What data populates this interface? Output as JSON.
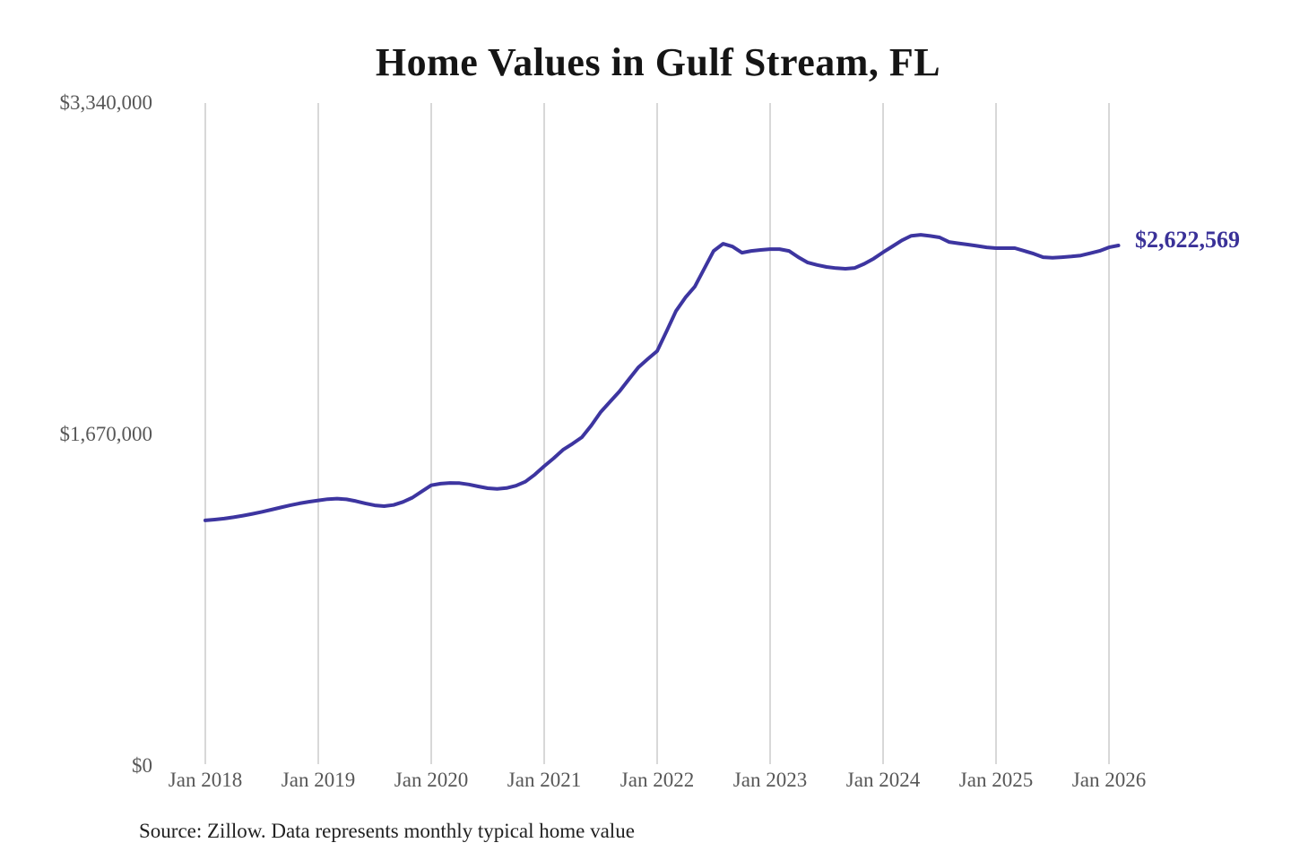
{
  "title": "Home Values in Gulf Stream, FL",
  "source_note": "Source: Zillow. Data represents monthly typical home value",
  "end_value_label": "$2,622,569",
  "colors": {
    "line": "#3d35a0",
    "grid": "#cccccc",
    "axis_text": "#575757",
    "title_text": "#151515",
    "end_label_text": "#3a3198",
    "background": "#ffffff"
  },
  "chart_data": {
    "type": "line",
    "title": "Home Values in Gulf Stream, FL",
    "xlabel": "",
    "ylabel": "",
    "ylim": [
      0,
      3340000
    ],
    "grid": "vertical-only",
    "legend": "none",
    "y_ticks": [
      {
        "label": "$0",
        "value": 0
      },
      {
        "label": "$1,670,000",
        "value": 1670000
      },
      {
        "label": "$3,340,000",
        "value": 3340000
      }
    ],
    "x_tick_labels": [
      "Jan 2018",
      "Jan 2019",
      "Jan 2020",
      "Jan 2021",
      "Jan 2022",
      "Jan 2023",
      "Jan 2024",
      "Jan 2025",
      "Jan 2026"
    ],
    "end_value": 2622569,
    "end_value_label": "$2,622,569",
    "series": [
      {
        "name": "Monthly typical home value",
        "x_start": "2018-01",
        "x_step_months": 1,
        "values": [
          1237000,
          1241000,
          1246000,
          1253000,
          1261000,
          1270000,
          1280000,
          1291000,
          1302000,
          1313000,
          1323000,
          1331000,
          1338000,
          1344000,
          1347000,
          1343000,
          1334000,
          1323000,
          1313000,
          1309000,
          1315000,
          1330000,
          1352000,
          1383000,
          1414000,
          1422000,
          1426000,
          1425000,
          1418000,
          1408000,
          1399000,
          1396000,
          1400000,
          1412000,
          1432000,
          1468000,
          1510000,
          1550000,
          1593000,
          1623000,
          1656000,
          1715000,
          1783000,
          1835000,
          1887000,
          1948000,
          2008000,
          2050000,
          2090000,
          2190000,
          2292000,
          2360000,
          2415000,
          2505000,
          2595000,
          2631000,
          2617000,
          2586000,
          2595000,
          2600000,
          2604000,
          2604000,
          2595000,
          2563000,
          2536000,
          2524000,
          2514000,
          2508000,
          2505000,
          2509000,
          2530000,
          2556000,
          2588000,
          2618000,
          2648000,
          2671000,
          2676000,
          2670000,
          2663000,
          2640000,
          2633000,
          2627000,
          2620000,
          2613000,
          2609000,
          2609000,
          2609000,
          2595000,
          2581000,
          2563000,
          2560000,
          2563000,
          2567000,
          2572000,
          2583000,
          2595000,
          2613000,
          2622569
        ]
      }
    ]
  }
}
